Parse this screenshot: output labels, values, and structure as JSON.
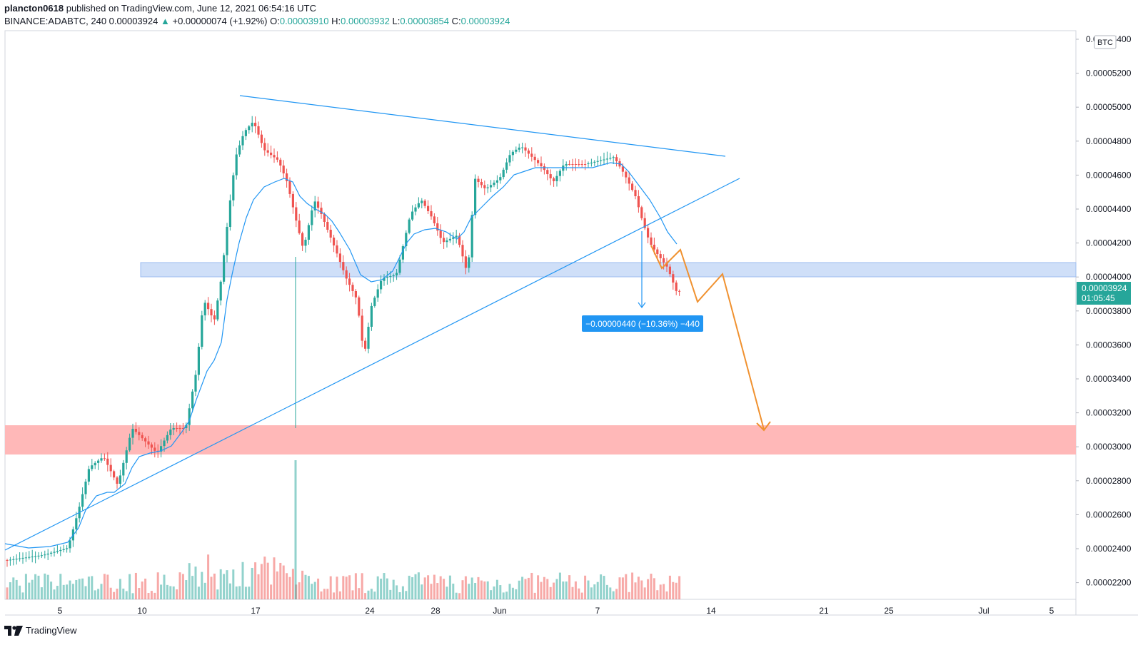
{
  "header": {
    "publisher": "plancton0618",
    "published_text": "published on TradingView.com, June 12, 2021 06:54:16 UTC",
    "symbol": "BINANCE:ADABTC, 240",
    "last": "0.00003924",
    "change": "+0.00000074 (+1.92%)",
    "o_label": "O:",
    "o": "0.00003910",
    "h_label": "H:",
    "h": "0.00003932",
    "l_label": "L:",
    "l": "0.00003854",
    "c_label": "C:",
    "c": "0.00003924"
  },
  "price_axis": {
    "currency": "BTC",
    "labels": [
      "0.00005400",
      "0.00005200",
      "0.00005000",
      "0.00004800",
      "0.00004600",
      "0.00004400",
      "0.00004200",
      "0.00004000",
      "0.00003800",
      "0.00003600",
      "0.00003400",
      "0.00003200",
      "0.00003000",
      "0.00002800",
      "0.00002600",
      "0.00002400",
      "0.00002200"
    ],
    "last_price": "0.00003924",
    "countdown": "01:05:45"
  },
  "time_axis": {
    "labels": [
      "5",
      "10",
      "17",
      "24",
      "28",
      "Jun",
      "7",
      "14",
      "21",
      "25",
      "Jul",
      "5"
    ]
  },
  "measure_label": "−0.00000440 (−10.36%) −440",
  "footer": {
    "brand": "TradingView"
  },
  "colors": {
    "bull": "#26a69a",
    "bear": "#ef5350",
    "line": "#2196f3",
    "resistance_zone": "#cfdff8",
    "support_zone": "#ffb8b8",
    "projection": "#f0912f"
  }
}
